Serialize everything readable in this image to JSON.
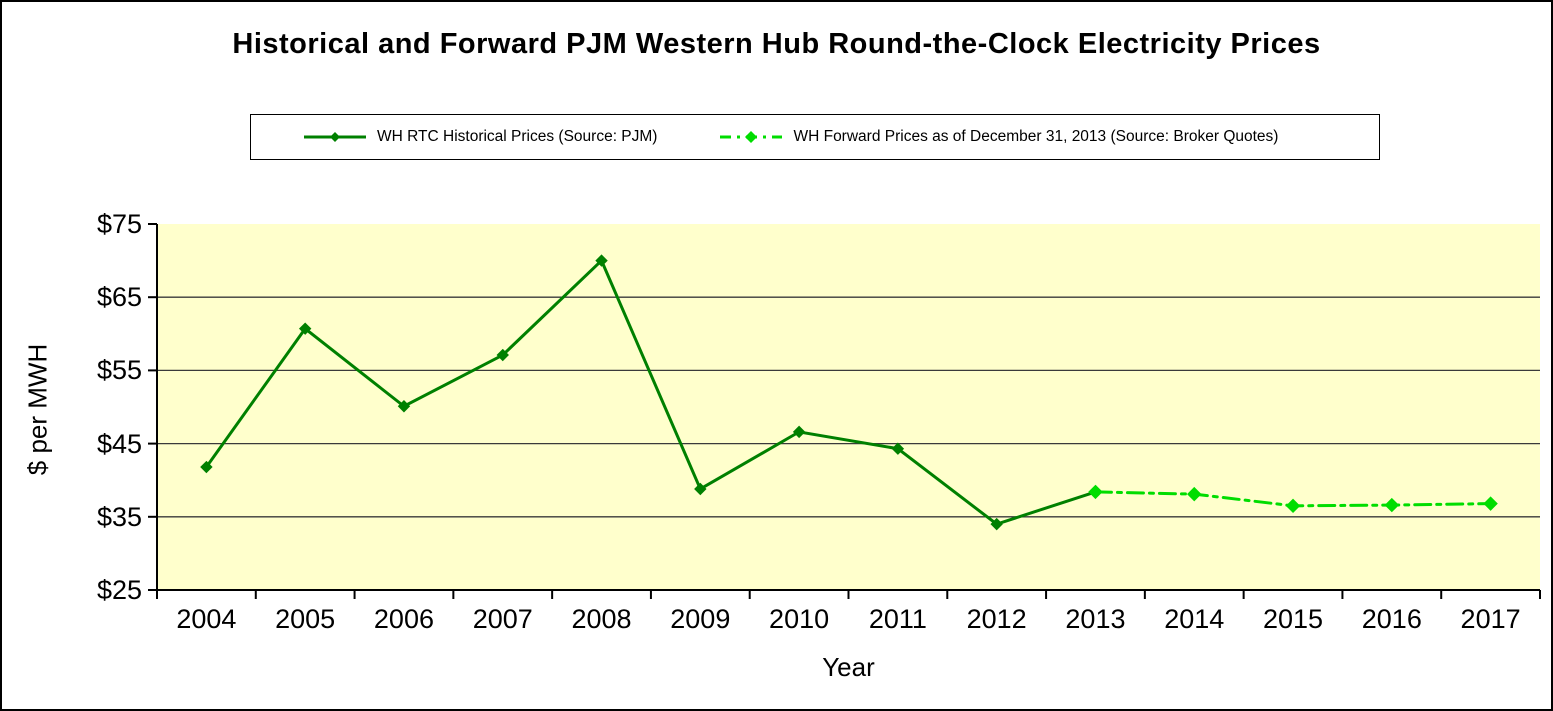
{
  "title": "Historical and Forward PJM Western Hub Round-the-Clock Electricity Prices",
  "legend": {
    "position": "top",
    "items": [
      {
        "label": "WH RTC Historical Prices (Source: PJM)",
        "color": "#008000",
        "line_style": "solid",
        "marker": "diamond"
      },
      {
        "label": "WH Forward Prices as of December 31, 2013 (Source: Broker Quotes)",
        "color": "#00DD00",
        "line_style": "dash-dot",
        "marker": "diamond"
      }
    ]
  },
  "chart_data": {
    "type": "line",
    "x": [
      "2004",
      "2005",
      "2006",
      "2007",
      "2008",
      "2009",
      "2010",
      "2011",
      "2012",
      "2013",
      "2014",
      "2015",
      "2016",
      "2017"
    ],
    "series": [
      {
        "name": "WH RTC Historical Prices (Source: PJM)",
        "color": "#008000",
        "line_style": "solid",
        "marker": "diamond",
        "values": [
          41.8,
          60.7,
          50.1,
          57.1,
          70.0,
          38.8,
          46.6,
          44.3,
          34.0,
          38.4,
          null,
          null,
          null,
          null
        ]
      },
      {
        "name": "WH Forward Prices as of December 31, 2013 (Source: Broker Quotes)",
        "color": "#00DD00",
        "line_style": "dash-dot",
        "marker": "diamond",
        "values": [
          null,
          null,
          null,
          null,
          null,
          null,
          null,
          null,
          null,
          38.4,
          38.1,
          36.5,
          36.6,
          36.8
        ]
      }
    ],
    "xlabel": "Year",
    "ylabel": "$ per MWH",
    "ylim": [
      25,
      75
    ],
    "yticks": [
      {
        "value": 75,
        "label": "$75"
      },
      {
        "value": 65,
        "label": "$65"
      },
      {
        "value": 55,
        "label": "$55"
      },
      {
        "value": 45,
        "label": "$45"
      },
      {
        "value": 35,
        "label": "$35"
      },
      {
        "value": 25,
        "label": "$25"
      }
    ],
    "grid": true,
    "plot_bg_color": "#FFFFCC",
    "gridline_color": "#3A3A3A",
    "axis_color": "#000000"
  }
}
